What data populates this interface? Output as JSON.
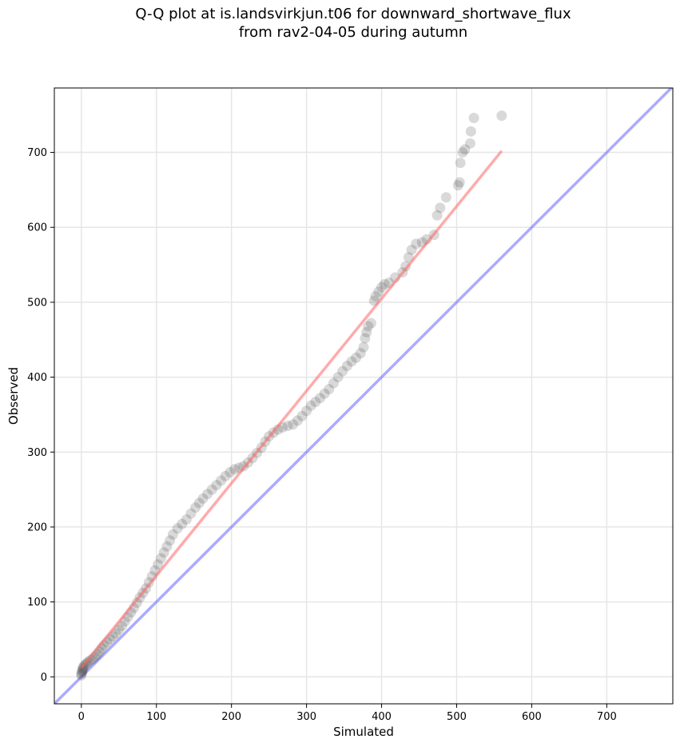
{
  "chart_data": {
    "type": "scatter",
    "title_line1": "Q-Q plot at is.landsvirkjun.t06 for downward_shortwave_flux",
    "title_line2": "from rav2-04-05 during autumn",
    "xlabel": "Simulated",
    "ylabel": "Observed",
    "xlim": [
      -36,
      788
    ],
    "ylim": [
      -36,
      786
    ],
    "xticks": [
      0,
      100,
      200,
      300,
      400,
      500,
      600,
      700
    ],
    "yticks": [
      0,
      100,
      200,
      300,
      400,
      500,
      600,
      700
    ],
    "grid": true,
    "colors": {
      "points": "#404040",
      "fit_line": "#ff6666",
      "identity_line": "#6666ff",
      "grid": "#e6e6e6"
    },
    "identity_line": {
      "name": "1:1",
      "from": [
        -36,
        -36
      ],
      "to": [
        788,
        788
      ]
    },
    "fit_line": {
      "from": [
        0,
        12
      ],
      "to": [
        560,
        702
      ]
    },
    "points": [
      [
        0,
        2
      ],
      [
        0,
        4
      ],
      [
        1,
        6
      ],
      [
        1,
        8
      ],
      [
        2,
        10
      ],
      [
        2,
        12
      ],
      [
        3,
        14
      ],
      [
        5,
        16
      ],
      [
        7,
        18
      ],
      [
        9,
        20
      ],
      [
        12,
        22
      ],
      [
        15,
        24
      ],
      [
        18,
        27
      ],
      [
        21,
        30
      ],
      [
        24,
        34
      ],
      [
        27,
        38
      ],
      [
        30,
        42
      ],
      [
        34,
        46
      ],
      [
        38,
        50
      ],
      [
        42,
        54
      ],
      [
        46,
        58
      ],
      [
        50,
        63
      ],
      [
        54,
        68
      ],
      [
        58,
        74
      ],
      [
        62,
        80
      ],
      [
        66,
        86
      ],
      [
        70,
        92
      ],
      [
        74,
        99
      ],
      [
        78,
        106
      ],
      [
        82,
        112
      ],
      [
        86,
        118
      ],
      [
        90,
        126
      ],
      [
        94,
        134
      ],
      [
        98,
        142
      ],
      [
        102,
        150
      ],
      [
        106,
        158
      ],
      [
        110,
        166
      ],
      [
        114,
        174
      ],
      [
        118,
        182
      ],
      [
        122,
        190
      ],
      [
        128,
        198
      ],
      [
        134,
        204
      ],
      [
        140,
        210
      ],
      [
        146,
        218
      ],
      [
        152,
        226
      ],
      [
        157,
        232
      ],
      [
        162,
        238
      ],
      [
        168,
        244
      ],
      [
        174,
        250
      ],
      [
        180,
        256
      ],
      [
        186,
        262
      ],
      [
        192,
        268
      ],
      [
        198,
        273
      ],
      [
        204,
        277
      ],
      [
        210,
        279
      ],
      [
        216,
        281
      ],
      [
        222,
        286
      ],
      [
        228,
        292
      ],
      [
        234,
        299
      ],
      [
        240,
        306
      ],
      [
        245,
        314
      ],
      [
        250,
        321
      ],
      [
        256,
        326
      ],
      [
        262,
        330
      ],
      [
        268,
        333
      ],
      [
        275,
        335
      ],
      [
        282,
        337
      ],
      [
        288,
        342
      ],
      [
        294,
        348
      ],
      [
        300,
        355
      ],
      [
        306,
        362
      ],
      [
        312,
        367
      ],
      [
        318,
        372
      ],
      [
        324,
        378
      ],
      [
        330,
        384
      ],
      [
        336,
        392
      ],
      [
        342,
        400
      ],
      [
        348,
        408
      ],
      [
        354,
        415
      ],
      [
        360,
        421
      ],
      [
        366,
        426
      ],
      [
        372,
        432
      ],
      [
        376,
        440
      ],
      [
        378,
        452
      ],
      [
        380,
        460
      ],
      [
        382,
        468
      ],
      [
        386,
        472
      ],
      [
        390,
        502
      ],
      [
        392,
        508
      ],
      [
        396,
        514
      ],
      [
        400,
        520
      ],
      [
        404,
        524
      ],
      [
        410,
        526
      ],
      [
        418,
        533
      ],
      [
        428,
        540
      ],
      [
        432,
        548
      ],
      [
        436,
        560
      ],
      [
        440,
        570
      ],
      [
        446,
        578
      ],
      [
        454,
        580
      ],
      [
        460,
        584
      ],
      [
        470,
        590
      ],
      [
        474,
        616
      ],
      [
        478,
        626
      ],
      [
        486,
        640
      ],
      [
        502,
        656
      ],
      [
        504,
        660
      ],
      [
        505,
        686
      ],
      [
        508,
        700
      ],
      [
        511,
        704
      ],
      [
        518,
        712
      ],
      [
        519,
        728
      ],
      [
        523,
        746
      ],
      [
        560,
        749
      ]
    ]
  }
}
